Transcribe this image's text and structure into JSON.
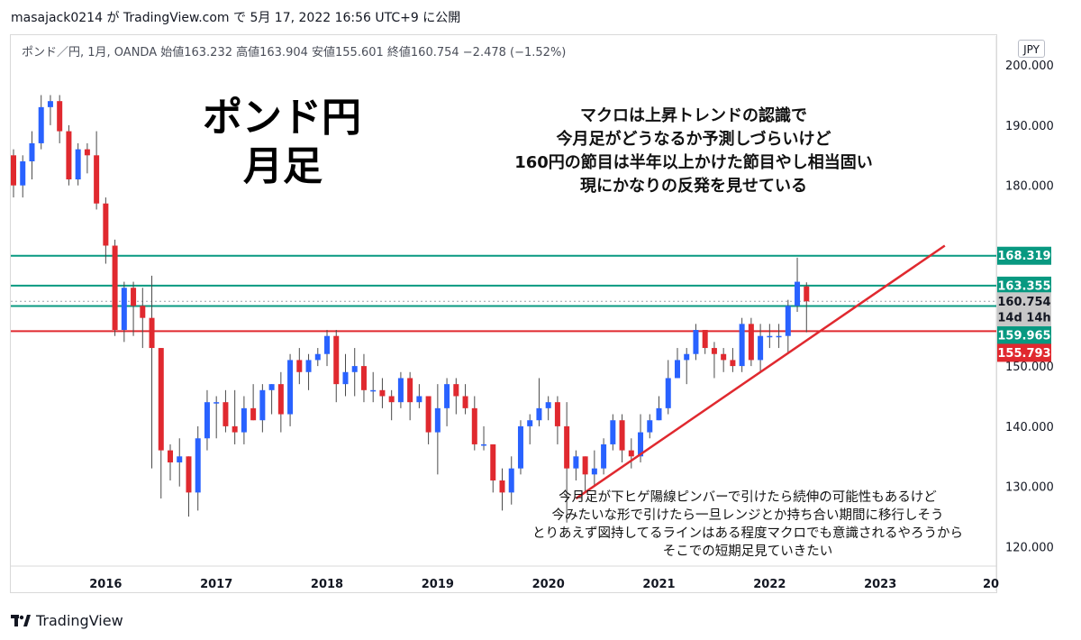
{
  "header": {
    "publish_line": "masajack0214 が TradingView.com で 5月 17, 2022 16:56 UTC+9 に公開"
  },
  "legend": {
    "text": "ポンド／円, 1月, OANDA  始値163.232  高値163.904  安値155.601  終値160.754  −2.478 (−1.52%)"
  },
  "currency_button": "JPY",
  "annotations": {
    "title_main": "ポンド円",
    "title_sub": "月足",
    "note_top": [
      "マクロは上昇トレンドの認識で",
      "今月足がどうなるか予測しづらいけど",
      "160円の節目は半年以上かけた節目やし相当固い",
      "現にかなりの反発を見せている"
    ],
    "note_bottom": [
      "今月足が下ヒゲ陽線ピンバーで引けたら続伸の可能性もあるけど",
      "今みたいな形で引けたら一旦レンジとか持ち合い期間に移行しそう",
      "とりあえず図持してるラインはある程度マクロでも意識されるやろうから",
      "そこでの短期足見ていきたい"
    ]
  },
  "footer": {
    "brand": "TradingView"
  },
  "colors": {
    "up": "#2962ff",
    "down": "#e0292f",
    "wick": "#4a4a4a",
    "teal": "#089981",
    "red_line": "#e0292f",
    "current_price_bg": "#c8c8c8"
  },
  "chart_data": {
    "type": "candlestick",
    "instrument": "ポンド／円",
    "timeframe": "1月",
    "source": "OANDA",
    "ohlc_latest": {
      "open": 163.232,
      "high": 163.904,
      "low": 155.601,
      "close": 160.754,
      "change": -2.478,
      "change_pct": -1.52
    },
    "ylim": [
      116,
      205
    ],
    "y_ticks": [
      120,
      130,
      140,
      150,
      160,
      170,
      180,
      190,
      200
    ],
    "y_tick_labels": [
      "120.000",
      "130.000",
      "140.000",
      "150.000",
      "",
      "",
      "180.000",
      "190.000",
      "200.000"
    ],
    "x_ticks": [
      {
        "label": "2016",
        "date": "2016-01"
      },
      {
        "label": "2017",
        "date": "2017-01"
      },
      {
        "label": "2018",
        "date": "2018-01"
      },
      {
        "label": "2019",
        "date": "2019-01"
      },
      {
        "label": "2020",
        "date": "2020-01"
      },
      {
        "label": "2021",
        "date": "2021-01"
      },
      {
        "label": "2022",
        "date": "2022-01"
      },
      {
        "label": "2023",
        "date": "2023-01"
      },
      {
        "label": "20",
        "date": "2024-01"
      }
    ],
    "x_range": [
      "2015-03",
      "2024-01"
    ],
    "candles": [
      [
        "2015-03",
        185,
        186,
        178,
        180
      ],
      [
        "2015-04",
        180,
        185,
        178,
        184
      ],
      [
        "2015-05",
        184,
        189,
        181,
        187
      ],
      [
        "2015-06",
        187,
        195,
        186,
        193
      ],
      [
        "2015-07",
        193,
        195,
        190,
        194
      ],
      [
        "2015-08",
        194,
        195,
        187,
        189
      ],
      [
        "2015-09",
        189,
        190,
        180,
        181
      ],
      [
        "2015-10",
        181,
        187,
        180,
        186
      ],
      [
        "2015-11",
        186,
        187,
        182,
        185
      ],
      [
        "2015-12",
        185,
        189,
        176,
        177
      ],
      [
        "2016-01",
        177,
        178,
        167,
        170
      ],
      [
        "2016-02",
        170,
        171,
        155,
        156
      ],
      [
        "2016-03",
        156,
        164,
        154,
        163
      ],
      [
        "2016-04",
        163,
        164,
        155,
        160
      ],
      [
        "2016-05",
        160,
        163,
        153,
        158
      ],
      [
        "2016-06",
        158,
        165,
        133,
        153
      ],
      [
        "2016-07",
        153,
        153,
        128,
        136
      ],
      [
        "2016-08",
        136,
        137,
        131,
        134
      ],
      [
        "2016-09",
        134,
        138,
        130,
        135
      ],
      [
        "2016-10",
        135,
        135,
        125,
        129
      ],
      [
        "2016-11",
        129,
        140,
        126,
        138
      ],
      [
        "2016-12",
        138,
        146,
        136,
        144
      ],
      [
        "2017-01",
        144,
        145,
        138,
        144
      ],
      [
        "2017-02",
        144,
        146,
        139,
        140
      ],
      [
        "2017-03",
        140,
        146,
        137,
        139
      ],
      [
        "2017-04",
        139,
        145,
        137,
        143
      ],
      [
        "2017-05",
        143,
        147,
        141,
        141
      ],
      [
        "2017-06",
        141,
        147,
        139,
        146
      ],
      [
        "2017-07",
        146,
        147,
        142,
        147
      ],
      [
        "2017-08",
        147,
        149,
        139,
        142
      ],
      [
        "2017-09",
        142,
        152,
        140,
        151
      ],
      [
        "2017-10",
        151,
        153,
        147,
        149
      ],
      [
        "2017-11",
        149,
        152,
        146,
        151
      ],
      [
        "2017-12",
        151,
        153,
        150,
        152
      ],
      [
        "2018-01",
        152,
        156,
        150,
        155
      ],
      [
        "2018-02",
        155,
        156,
        144,
        147
      ],
      [
        "2018-03",
        147,
        152,
        145,
        149
      ],
      [
        "2018-04",
        149,
        153,
        145,
        150
      ],
      [
        "2018-05",
        150,
        152,
        144,
        146
      ],
      [
        "2018-06",
        146,
        149,
        144,
        146
      ],
      [
        "2018-07",
        146,
        148,
        143,
        145
      ],
      [
        "2018-08",
        145,
        146,
        141,
        144
      ],
      [
        "2018-09",
        144,
        149,
        143,
        148
      ],
      [
        "2018-10",
        148,
        149,
        141,
        144
      ],
      [
        "2018-11",
        144,
        147,
        143,
        145
      ],
      [
        "2018-12",
        145,
        145,
        137,
        139
      ],
      [
        "2019-01",
        139,
        147,
        132,
        143
      ],
      [
        "2019-02",
        143,
        148,
        140,
        147
      ],
      [
        "2019-03",
        147,
        148,
        142,
        145
      ],
      [
        "2019-04",
        145,
        147,
        142,
        143
      ],
      [
        "2019-05",
        143,
        145,
        136,
        137
      ],
      [
        "2019-06",
        137,
        140,
        136,
        137
      ],
      [
        "2019-07",
        137,
        137,
        129,
        131
      ],
      [
        "2019-08",
        131,
        133,
        126,
        129
      ],
      [
        "2019-09",
        129,
        135,
        127,
        133
      ],
      [
        "2019-10",
        133,
        141,
        132,
        140
      ],
      [
        "2019-11",
        140,
        142,
        137,
        141
      ],
      [
        "2019-12",
        141,
        148,
        140,
        143
      ],
      [
        "2020-01",
        143,
        145,
        141,
        144
      ],
      [
        "2020-02",
        144,
        145,
        137,
        140
      ],
      [
        "2020-03",
        140,
        144,
        124,
        133
      ],
      [
        "2020-04",
        133,
        136,
        131,
        135
      ],
      [
        "2020-05",
        135,
        135,
        129,
        132
      ],
      [
        "2020-06",
        132,
        136,
        130,
        133
      ],
      [
        "2020-07",
        133,
        138,
        132,
        137
      ],
      [
        "2020-08",
        137,
        142,
        136,
        141
      ],
      [
        "2020-09",
        141,
        142,
        134,
        136
      ],
      [
        "2020-10",
        136,
        138,
        133,
        135
      ],
      [
        "2020-11",
        135,
        142,
        134,
        139
      ],
      [
        "2020-12",
        139,
        142,
        138,
        141
      ],
      [
        "2021-01",
        141,
        145,
        141,
        143
      ],
      [
        "2021-02",
        143,
        151,
        142,
        148
      ],
      [
        "2021-03",
        148,
        153,
        148,
        151
      ],
      [
        "2021-04",
        151,
        153,
        147,
        152
      ],
      [
        "2021-05",
        152,
        157,
        151,
        156
      ],
      [
        "2021-06",
        156,
        156,
        152,
        153
      ],
      [
        "2021-07",
        153,
        154,
        148,
        152
      ],
      [
        "2021-08",
        152,
        153,
        149,
        151
      ],
      [
        "2021-09",
        151,
        153,
        149,
        150
      ],
      [
        "2021-10",
        150,
        158,
        149,
        157
      ],
      [
        "2021-11",
        157,
        158,
        150,
        151
      ],
      [
        "2021-12",
        151,
        157,
        149,
        155
      ],
      [
        "2022-01",
        155,
        157,
        153,
        155
      ],
      [
        "2022-02",
        155,
        157,
        153,
        155
      ],
      [
        "2022-03",
        155,
        161,
        152,
        160
      ],
      [
        "2022-04",
        160,
        168,
        159,
        164
      ],
      [
        "2022-05",
        163.232,
        163.904,
        155.601,
        160.754
      ]
    ],
    "horizontal_lines": [
      {
        "price": 168.319,
        "color": "teal"
      },
      {
        "price": 163.355,
        "color": "teal"
      },
      {
        "price": 159.965,
        "color": "teal"
      },
      {
        "price": 155.793,
        "color": "red"
      }
    ],
    "trendline": {
      "from": {
        "date": "2020-04",
        "price": 128
      },
      "to": {
        "date": "2023-08",
        "price": 170
      }
    },
    "price_labels": [
      {
        "text": "168.319",
        "price": 168.319,
        "style": "teal"
      },
      {
        "text": "163.355",
        "price": 163.355,
        "style": "teal"
      },
      {
        "text": "160.754",
        "price": 160.754,
        "style": "gray"
      },
      {
        "text": "14d 14h",
        "price": 158.1,
        "style": "gray"
      },
      {
        "text": "159.965",
        "price": 155.1,
        "style": "teal"
      },
      {
        "text": "155.793",
        "price": 152.2,
        "style": "red"
      }
    ]
  }
}
